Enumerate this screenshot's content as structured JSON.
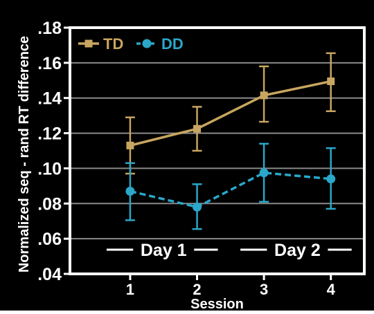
{
  "chart_data": {
    "type": "line",
    "title": "",
    "xlabel": "Session",
    "ylabel": "Normalized seq - rand RT difference",
    "x": [
      1,
      2,
      3,
      4
    ],
    "x_tick_labels": [
      "1",
      "2",
      "3",
      "4"
    ],
    "xlim": [
      0.1,
      4.5
    ],
    "ylim": [
      0.04,
      0.18
    ],
    "y_ticks": [
      0.04,
      0.06,
      0.08,
      0.1,
      0.12,
      0.14,
      0.16,
      0.18
    ],
    "y_tick_labels": [
      ".04",
      ".06",
      ".08",
      ".10",
      ".12",
      ".14",
      ".16",
      ".18"
    ],
    "grid": true,
    "legend_position": "top-left",
    "background": "#000000",
    "series": [
      {
        "name": "TD",
        "color": "#c8a560",
        "marker": "square",
        "line_style": "solid",
        "values": [
          0.113,
          0.1225,
          0.1415,
          0.1495
        ],
        "error_low": [
          0.097,
          0.11,
          0.1265,
          0.1325
        ],
        "error_high": [
          0.129,
          0.135,
          0.158,
          0.1655
        ]
      },
      {
        "name": "DD",
        "color": "#2aa7c9",
        "marker": "circle",
        "line_style": "dashed",
        "values": [
          0.087,
          0.078,
          0.0975,
          0.094
        ],
        "error_low": [
          0.0705,
          0.0655,
          0.081,
          0.077
        ],
        "error_high": [
          0.103,
          0.091,
          0.114,
          0.1115
        ]
      }
    ],
    "annotations": [
      {
        "text": "Day 1",
        "x_from": 1,
        "x_to": 2
      },
      {
        "text": "Day 2",
        "x_from": 3,
        "x_to": 4
      }
    ]
  }
}
